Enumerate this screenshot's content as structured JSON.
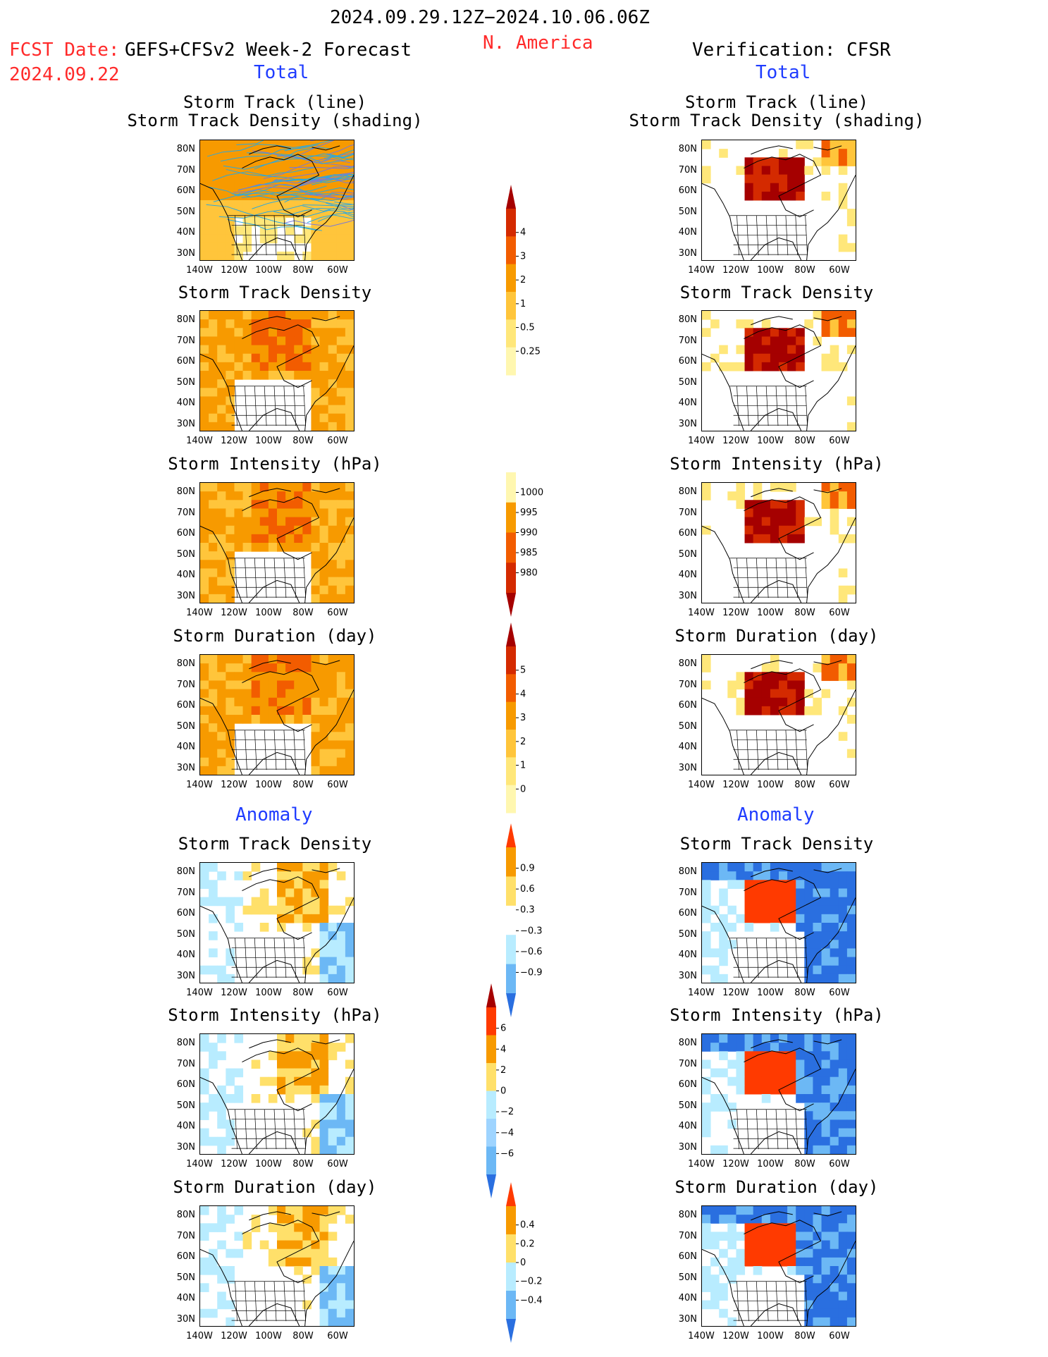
{
  "header": {
    "date_range": "2024.09.29.12Z−2024.10.06.06Z",
    "region": "N. America",
    "fcst_label": "FCST Date:",
    "model": "GEFS+CFSv2 Week-2 Forecast",
    "fcst_date": "2024.09.22",
    "verification": "Verification: CFSR"
  },
  "sections": {
    "total": "Total",
    "anomaly": "Anomaly"
  },
  "panel_titles": {
    "track_line": "Storm Track (line)",
    "track_shading": "Storm Track Density (shading)",
    "density": "Storm Track Density",
    "intensity": "Storm Intensity (hPa)",
    "duration": "Storm Duration (day)"
  },
  "axes": {
    "lat_labels": [
      "80N",
      "70N",
      "60N",
      "50N",
      "40N",
      "30N"
    ],
    "lon_labels": [
      "140W",
      "120W",
      "100W",
      "80W",
      "60W"
    ]
  },
  "colorbars": {
    "density_total": {
      "ticks": [
        "4",
        "3",
        "2",
        "1",
        "0.5",
        "0.25"
      ],
      "colors": [
        "#a50000",
        "#d42a00",
        "#f25c00",
        "#f79a00",
        "#ffc53b",
        "#ffe77a",
        "#fff7b0"
      ]
    },
    "intensity_total": {
      "ticks": [
        "1000",
        "995",
        "990",
        "985",
        "980"
      ],
      "colors": [
        "#fff7b0",
        "#f79a00",
        "#f25c00",
        "#d42a00",
        "#a50000"
      ]
    },
    "duration_total": {
      "ticks": [
        "5",
        "4",
        "3",
        "2",
        "1",
        "0"
      ],
      "colors": [
        "#a50000",
        "#d42a00",
        "#f25c00",
        "#f79a00",
        "#ffc53b",
        "#ffe77a",
        "#fff7b0"
      ]
    },
    "density_anom": {
      "ticks": [
        "0.9",
        "0.6",
        "0.3",
        "−0.3",
        "−0.6",
        "−0.9"
      ],
      "colors": [
        "#ff3a00",
        "#f79a00",
        "#ffe06a",
        "#ffffff",
        "#b8ecff",
        "#6cb8f5",
        "#2a6fe0"
      ]
    },
    "intensity_anom": {
      "ticks": [
        "6",
        "4",
        "2",
        "0",
        "−2",
        "−4",
        "−6"
      ],
      "colors": [
        "#a50000",
        "#ff3a00",
        "#f79a00",
        "#ffe06a",
        "#b8ecff",
        "#9ed4ff",
        "#6cb8f5",
        "#2a6fe0"
      ]
    },
    "duration_anom": {
      "ticks": [
        "0.4",
        "0.2",
        "0",
        "−0.2",
        "−0.4"
      ],
      "colors": [
        "#ff3a00",
        "#f79a00",
        "#ffe06a",
        "#b8ecff",
        "#6cb8f5",
        "#2a6fe0"
      ]
    }
  }
}
